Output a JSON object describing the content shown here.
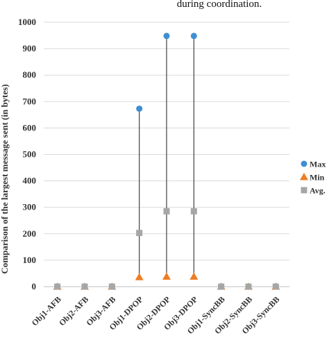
{
  "chart_data": {
    "type": "scatter",
    "title": "during coordination.",
    "ylabel": "Comparison of the largest message sent  (in bytes)",
    "xlabel": "",
    "ylim": [
      0,
      1000
    ],
    "yticks": [
      0,
      100,
      200,
      300,
      400,
      500,
      600,
      700,
      800,
      900,
      1000
    ],
    "categories": [
      "Obj1-AFB",
      "Obj2-AFB",
      "Obj3-AFB",
      "Obj1-DPOP",
      "Obj2-DPOP",
      "Obj3-DPOP",
      "Obj1-SyncBB",
      "Obj2-SyncBB",
      "Obj3-SyncBB"
    ],
    "grid": true,
    "legend_position": "right",
    "series": [
      {
        "name": "Max",
        "marker": "circle",
        "color": "#3e8fd4",
        "values": [
          0,
          0,
          0,
          673,
          948,
          948,
          0,
          0,
          0
        ]
      },
      {
        "name": "Min",
        "marker": "triangle",
        "color": "#ef7d22",
        "values": [
          0,
          0,
          0,
          36,
          38,
          38,
          0,
          0,
          0
        ]
      },
      {
        "name": "Avg.",
        "marker": "square",
        "color": "#a6a6a6",
        "values": [
          0,
          0,
          0,
          203,
          285,
          285,
          0,
          0,
          0
        ]
      }
    ]
  }
}
